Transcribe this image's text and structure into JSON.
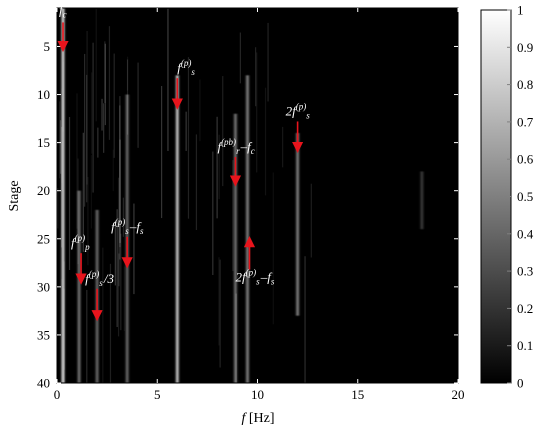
{
  "chart_data": {
    "type": "heatmap",
    "xlabel_italic": "f",
    "xlabel_unit": " [Hz]",
    "ylabel": "Stage",
    "xlim": [
      0,
      20
    ],
    "ylim": [
      40,
      1
    ],
    "y_inverted": true,
    "x_ticks": [
      "0",
      "5",
      "10",
      "15",
      "20"
    ],
    "y_ticks": [
      "5",
      "10",
      "15",
      "20",
      "25",
      "30",
      "35",
      "40"
    ],
    "colorbar": {
      "colormap": "gray",
      "range": [
        0,
        1
      ],
      "ticks": [
        "0",
        "0.1",
        "0.2",
        "0.3",
        "0.4",
        "0.5",
        "0.6",
        "0.7",
        "0.8",
        "0.9",
        "1"
      ]
    },
    "dominant_lines": [
      {
        "freq": 0.3,
        "stage_range": [
          1,
          40
        ],
        "intensity": 0.95
      },
      {
        "freq": 6.0,
        "stage_range": [
          8,
          40
        ],
        "intensity": 0.85
      },
      {
        "freq": 8.9,
        "stage_range": [
          12,
          40
        ],
        "intensity": 0.5
      },
      {
        "freq": 9.5,
        "stage_range": [
          8,
          40
        ],
        "intensity": 0.55
      },
      {
        "freq": 12.0,
        "stage_range": [
          14,
          33
        ],
        "intensity": 0.55
      },
      {
        "freq": 3.5,
        "stage_range": [
          10,
          40
        ],
        "intensity": 0.45
      },
      {
        "freq": 1.1,
        "stage_range": [
          20,
          40
        ],
        "intensity": 0.5
      },
      {
        "freq": 2.0,
        "stage_range": [
          22,
          40
        ],
        "intensity": 0.45
      },
      {
        "freq": 18.2,
        "stage_range": [
          18,
          24
        ],
        "intensity": 0.25
      }
    ],
    "annotations": [
      {
        "id": "fc",
        "base": "f",
        "sub": "c",
        "sup": "",
        "rest": "",
        "arrow_freq": 0.3,
        "arrow_from_stage": 2.5,
        "arrow_to_stage": 5.0
      },
      {
        "id": "fs",
        "base": "f",
        "sub": "s",
        "sup": "(p)",
        "rest": "",
        "arrow_freq": 6.0,
        "arrow_from_stage": 8.3,
        "arrow_to_stage": 11.0
      },
      {
        "id": "2fs",
        "base": "2f",
        "sub": "s",
        "sup": "(p)",
        "rest": "",
        "arrow_freq": 12.0,
        "arrow_from_stage": 12.8,
        "arrow_to_stage": 15.5
      },
      {
        "id": "frfc",
        "base": "f",
        "sub": "r",
        "sup": "(pb)",
        "rest": "–f",
        "rest_sub": "c",
        "arrow_freq": 8.9,
        "arrow_from_stage": 16.5,
        "arrow_to_stage": 19.0
      },
      {
        "id": "fp",
        "base": "f",
        "sub": "p",
        "sup": "(p)",
        "rest": "",
        "arrow_freq": 1.2,
        "arrow_from_stage": 26.5,
        "arrow_to_stage": 29.2
      },
      {
        "id": "fsmfs",
        "base": "f",
        "sub": "s",
        "sup": "(p)",
        "rest": "–f",
        "rest_sub": "s",
        "arrow_freq": 3.5,
        "arrow_from_stage": 24.8,
        "arrow_to_stage": 27.5
      },
      {
        "id": "fs3",
        "base": "f",
        "sub": "s",
        "sup": "(p)",
        "rest": "/3",
        "arrow_freq": 2.0,
        "arrow_from_stage": 30.2,
        "arrow_to_stage": 33.0
      },
      {
        "id": "2fsmfs",
        "base": "2f",
        "sub": "s",
        "sup": "(p)",
        "rest": "–f",
        "rest_sub": "s",
        "arrow_freq": 9.6,
        "arrow_from_stage": 28.2,
        "arrow_to_stage": 25.3
      }
    ]
  }
}
